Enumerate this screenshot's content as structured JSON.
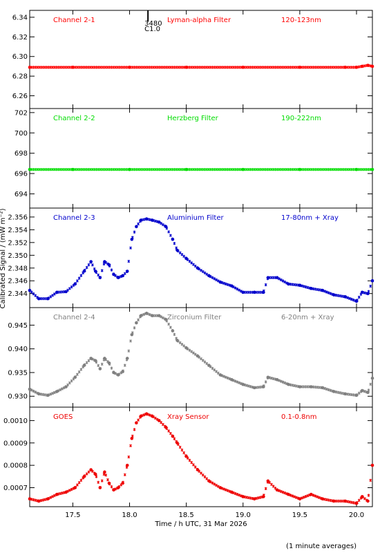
{
  "xaxis": {
    "label": "Time / h UTC, 31 Mar 2026",
    "range": [
      17.12,
      20.14
    ],
    "ticks": [
      17.5,
      18.0,
      18.5,
      19.0,
      19.5,
      20.0
    ],
    "tick_labels": [
      "17.5",
      "18.0",
      "18.5",
      "19.0",
      "19.5",
      "20.0"
    ]
  },
  "ylabel": "Calibrated Signal / (mW m⁻²)",
  "footnote": "(1 minute averages)",
  "marker_label": {
    "line1": "3480",
    "line2": "C1.0",
    "x": 18.15
  },
  "chart_data": [
    {
      "type": "scatter",
      "title": "Channel 2-1",
      "filter": "Lyman-alpha Filter",
      "band": "120-123nm",
      "color": "#ff0000",
      "ylim": [
        6.247,
        6.347
      ],
      "yticks": [
        6.26,
        6.28,
        6.3,
        6.32,
        6.34
      ],
      "ytick_labels": [
        "6.26",
        "6.28",
        "6.30",
        "6.32",
        "6.34"
      ],
      "x": [
        17.12,
        17.5,
        18.0,
        18.5,
        19.0,
        19.5,
        19.9,
        20.0,
        20.05,
        20.1,
        20.14
      ],
      "y": [
        6.289,
        6.289,
        6.289,
        6.289,
        6.289,
        6.289,
        6.289,
        6.289,
        6.29,
        6.291,
        6.29
      ]
    },
    {
      "type": "scatter",
      "title": "Channel 2-2",
      "filter": "Herzberg Filter",
      "band": "190-222nm",
      "color": "#00dd00",
      "ylim": [
        692.6,
        702.4
      ],
      "yticks": [
        694,
        696,
        698,
        700,
        702
      ],
      "ytick_labels": [
        "694",
        "696",
        "698",
        "700",
        "702"
      ],
      "x": [
        17.12,
        17.5,
        18.0,
        18.5,
        19.0,
        19.5,
        20.0,
        20.14
      ],
      "y": [
        696.4,
        696.4,
        696.4,
        696.4,
        696.4,
        696.4,
        696.4,
        696.4
      ]
    },
    {
      "type": "scatter",
      "title": "Channel 2-3",
      "filter": "Aluminium Filter",
      "band": "17-80nm + Xray",
      "color": "#0000cc",
      "ylim": [
        2.3418,
        2.3574
      ],
      "yticks": [
        2.344,
        2.346,
        2.348,
        2.35,
        2.352,
        2.354,
        2.356
      ],
      "ytick_labels": [
        "2.344",
        "2.346",
        "2.348",
        "2.350",
        "2.352",
        "2.354",
        "2.356"
      ],
      "x": [
        17.12,
        17.2,
        17.28,
        17.36,
        17.44,
        17.52,
        17.6,
        17.66,
        17.7,
        17.74,
        17.78,
        17.82,
        17.86,
        17.9,
        17.94,
        17.98,
        18.02,
        18.06,
        18.1,
        18.15,
        18.2,
        18.26,
        18.32,
        18.38,
        18.42,
        18.5,
        18.6,
        18.7,
        18.8,
        18.9,
        19.0,
        19.1,
        19.18,
        19.22,
        19.3,
        19.4,
        19.5,
        19.6,
        19.7,
        19.8,
        19.9,
        20.0,
        20.05,
        20.1,
        20.14
      ],
      "y": [
        2.3445,
        2.3432,
        2.3432,
        2.3442,
        2.3443,
        2.3455,
        2.3475,
        2.349,
        2.3475,
        2.3465,
        2.349,
        2.3485,
        2.347,
        2.3465,
        2.3468,
        2.3475,
        2.3525,
        2.3545,
        2.3555,
        2.3557,
        2.3555,
        2.3552,
        2.3545,
        2.3525,
        2.3508,
        2.3495,
        2.348,
        2.3468,
        2.3458,
        2.3452,
        2.3442,
        2.3442,
        2.3442,
        2.3465,
        2.3465,
        2.3455,
        2.3453,
        2.3448,
        2.3445,
        2.3438,
        2.3435,
        2.3428,
        2.3442,
        2.344,
        2.346
      ]
    },
    {
      "type": "scatter",
      "title": "Channel 2-4",
      "filter": "Zirconium Filter",
      "band": "6-20nm + Xray",
      "color": "#808080",
      "ylim": [
        0.9277,
        0.9487
      ],
      "yticks": [
        0.93,
        0.935,
        0.94,
        0.945
      ],
      "ytick_labels": [
        "0.930",
        "0.935",
        "0.940",
        "0.945"
      ],
      "x": [
        17.12,
        17.2,
        17.28,
        17.36,
        17.44,
        17.52,
        17.6,
        17.66,
        17.7,
        17.74,
        17.78,
        17.82,
        17.86,
        17.9,
        17.94,
        17.98,
        18.02,
        18.06,
        18.1,
        18.15,
        18.2,
        18.26,
        18.32,
        18.38,
        18.42,
        18.5,
        18.6,
        18.7,
        18.8,
        18.9,
        19.0,
        19.1,
        19.18,
        19.22,
        19.3,
        19.4,
        19.5,
        19.6,
        19.7,
        19.8,
        19.9,
        20.0,
        20.05,
        20.1,
        20.14
      ],
      "y": [
        0.9315,
        0.9305,
        0.9302,
        0.931,
        0.932,
        0.934,
        0.9365,
        0.938,
        0.9375,
        0.9358,
        0.938,
        0.937,
        0.935,
        0.9345,
        0.9352,
        0.938,
        0.943,
        0.9455,
        0.947,
        0.9475,
        0.947,
        0.947,
        0.9462,
        0.9438,
        0.9418,
        0.9402,
        0.9385,
        0.9365,
        0.9345,
        0.9335,
        0.9325,
        0.9318,
        0.932,
        0.934,
        0.9335,
        0.9325,
        0.932,
        0.932,
        0.9318,
        0.931,
        0.9305,
        0.9302,
        0.9312,
        0.9308,
        0.9338
      ]
    },
    {
      "type": "scatter",
      "title": "GOES",
      "filter": "Xray Sensor",
      "band": "0.1-0.8nm",
      "color": "#ee0000",
      "ylim": [
        0.000615,
        0.00106
      ],
      "yticks": [
        0.0007,
        0.0008,
        0.0009,
        0.001
      ],
      "ytick_labels": [
        "0.0007",
        "0.0008",
        "0.0009",
        "0.0010"
      ],
      "x": [
        17.12,
        17.2,
        17.28,
        17.36,
        17.44,
        17.52,
        17.6,
        17.66,
        17.7,
        17.74,
        17.78,
        17.82,
        17.86,
        17.9,
        17.94,
        17.98,
        18.02,
        18.06,
        18.1,
        18.15,
        18.2,
        18.26,
        18.32,
        18.38,
        18.42,
        18.5,
        18.6,
        18.7,
        18.8,
        18.9,
        19.0,
        19.1,
        19.18,
        19.22,
        19.3,
        19.4,
        19.5,
        19.6,
        19.7,
        19.8,
        19.9,
        20.0,
        20.05,
        20.1,
        20.14
      ],
      "y": [
        0.00065,
        0.00064,
        0.00065,
        0.00067,
        0.00068,
        0.0007,
        0.00075,
        0.00078,
        0.00076,
        0.0007,
        0.00077,
        0.00072,
        0.00069,
        0.0007,
        0.00072,
        0.0008,
        0.00092,
        0.00099,
        0.00102,
        0.00103,
        0.00102,
        0.001,
        0.00097,
        0.00093,
        0.0009,
        0.00084,
        0.00078,
        0.00073,
        0.0007,
        0.00068,
        0.00066,
        0.00065,
        0.00066,
        0.00073,
        0.00069,
        0.00067,
        0.00065,
        0.00067,
        0.00065,
        0.00064,
        0.00064,
        0.00063,
        0.00066,
        0.00064,
        0.0008
      ]
    }
  ]
}
